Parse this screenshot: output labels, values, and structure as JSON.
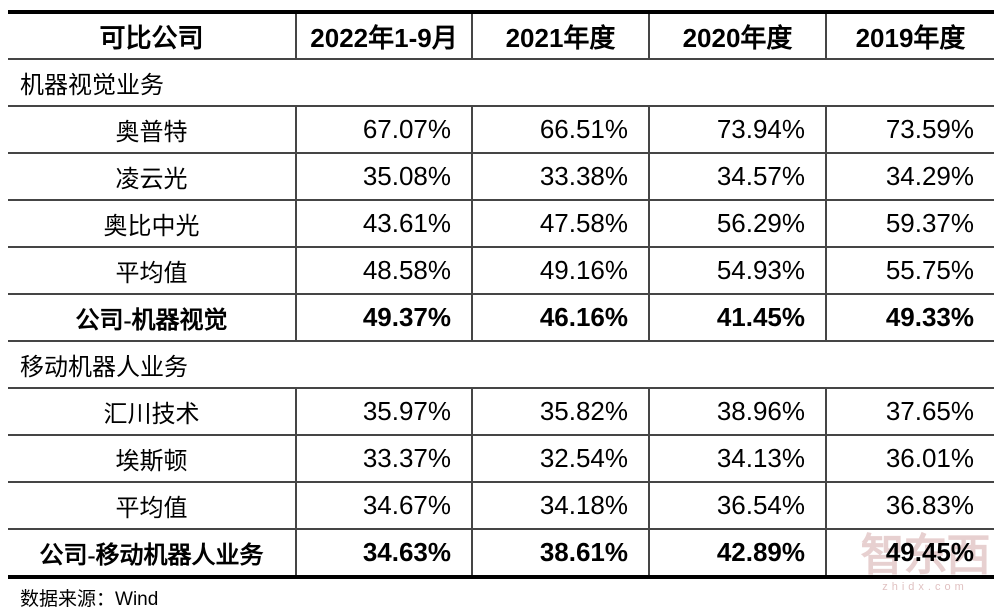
{
  "table": {
    "columns": [
      "可比公司",
      "2022年1-9月",
      "2021年度",
      "2020年度",
      "2019年度"
    ],
    "sections": [
      {
        "title": "机器视觉业务",
        "rows": [
          {
            "name": "奥普特",
            "bold": false,
            "values": [
              "67.07%",
              "66.51%",
              "73.94%",
              "73.59%"
            ]
          },
          {
            "name": "凌云光",
            "bold": false,
            "values": [
              "35.08%",
              "33.38%",
              "34.57%",
              "34.29%"
            ]
          },
          {
            "name": "奥比中光",
            "bold": false,
            "values": [
              "43.61%",
              "47.58%",
              "56.29%",
              "59.37%"
            ]
          },
          {
            "name": "平均值",
            "bold": false,
            "values": [
              "48.58%",
              "49.16%",
              "54.93%",
              "55.75%"
            ]
          },
          {
            "name": "公司-机器视觉",
            "bold": true,
            "values": [
              "49.37%",
              "46.16%",
              "41.45%",
              "49.33%"
            ]
          }
        ]
      },
      {
        "title": "移动机器人业务",
        "rows": [
          {
            "name": "汇川技术",
            "bold": false,
            "values": [
              "35.97%",
              "35.82%",
              "38.96%",
              "37.65%"
            ]
          },
          {
            "name": "埃斯顿",
            "bold": false,
            "values": [
              "33.37%",
              "32.54%",
              "34.13%",
              "36.01%"
            ]
          },
          {
            "name": "平均值",
            "bold": false,
            "values": [
              "34.67%",
              "34.18%",
              "36.54%",
              "36.83%"
            ]
          },
          {
            "name": "公司-移动机器人业务",
            "bold": true,
            "values": [
              "34.63%",
              "38.61%",
              "42.89%",
              "49.45%"
            ]
          }
        ]
      }
    ]
  },
  "footer": {
    "source_prefix": "数据来源：",
    "source_name": "Wind"
  },
  "watermark": {
    "logo_text": "智东西",
    "domain": "zhidx.com",
    "color": "#c68e8e"
  },
  "colors": {
    "border_thick": "#000000",
    "border_thin": "#454545",
    "text": "#000000"
  }
}
